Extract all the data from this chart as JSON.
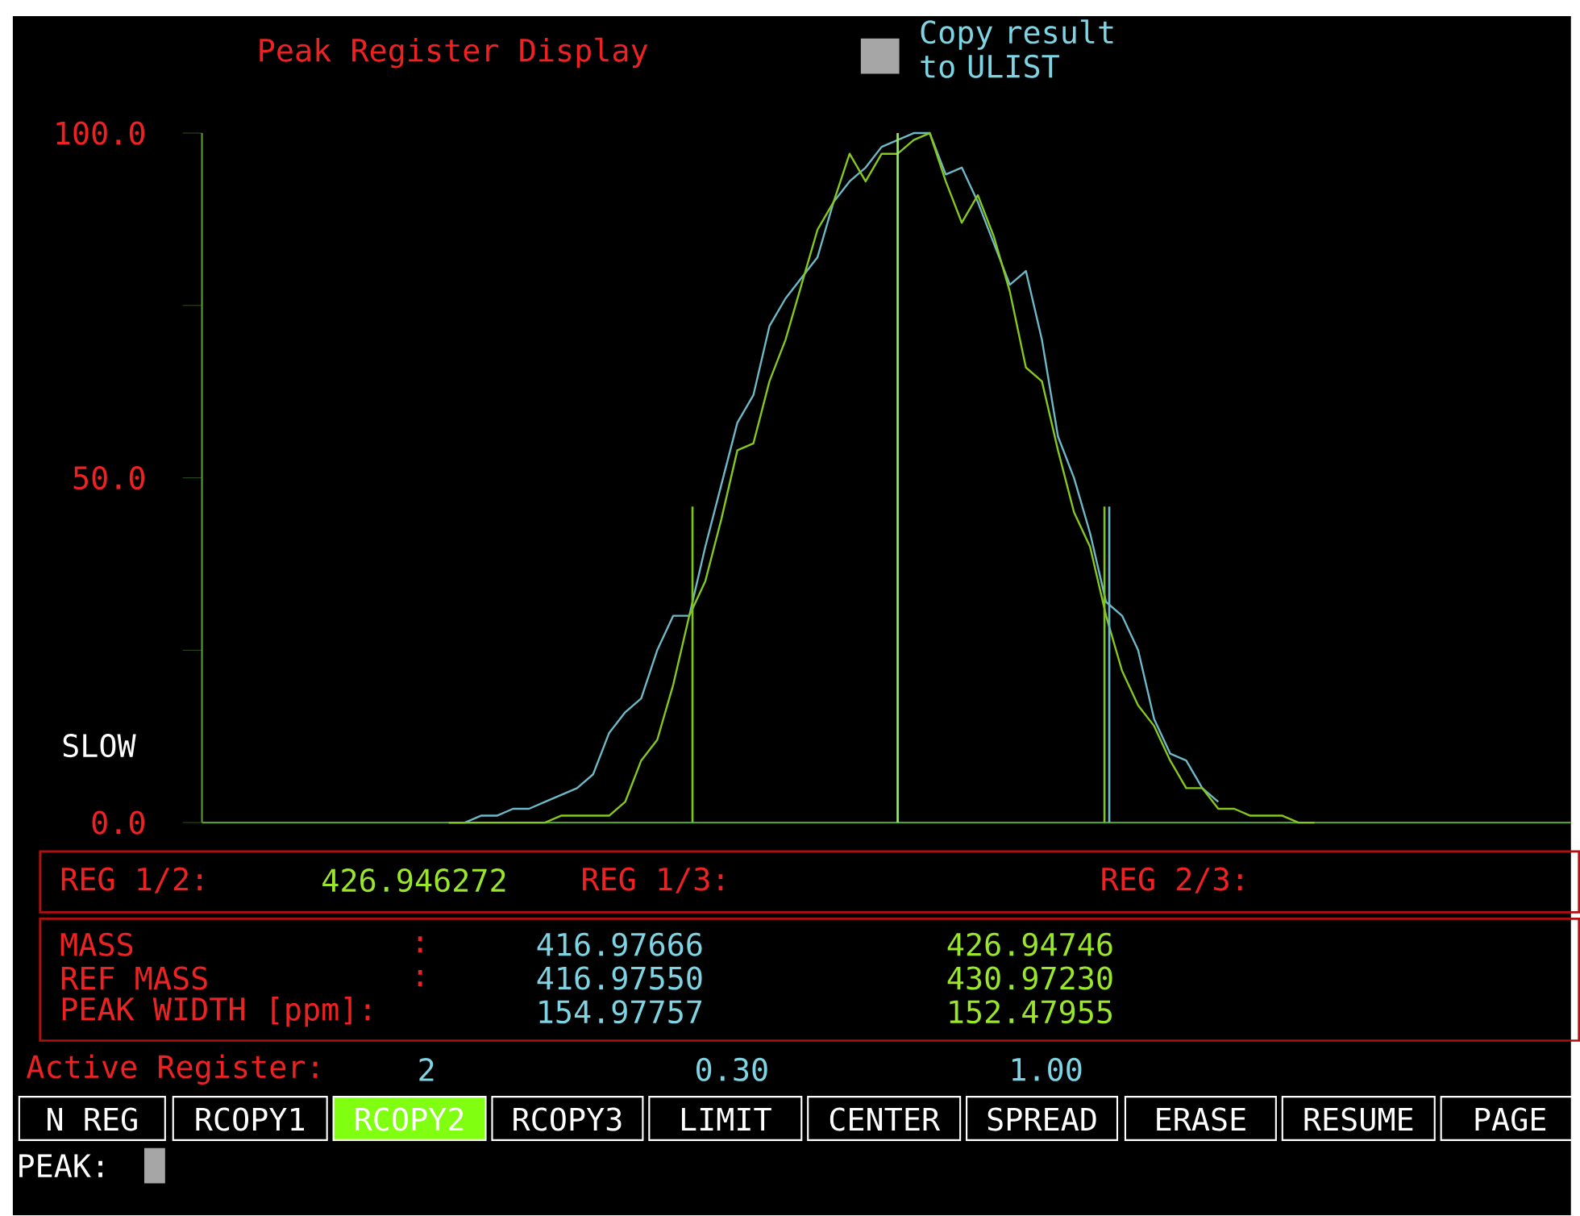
{
  "chart_data": {
    "type": "line",
    "title": "Peak Register Display",
    "categories": [
      null,
      null,
      null,
      null,
      null,
      null,
      null,
      null,
      null,
      null,
      null,
      null,
      null,
      null,
      null,
      null,
      null,
      null,
      null,
      null,
      null,
      null,
      null,
      null,
      null,
      null,
      null,
      null,
      null,
      null,
      null,
      null,
      null,
      null,
      null,
      null,
      null,
      null,
      null,
      null,
      null,
      null,
      null,
      null,
      null,
      null,
      null,
      null,
      null,
      null,
      null,
      null,
      null,
      null,
      null,
      null,
      null,
      null,
      null,
      null,
      null,
      null,
      null,
      null,
      null,
      null,
      null,
      null,
      null,
      null,
      null,
      null,
      null,
      null,
      null,
      null,
      null,
      null,
      null,
      null,
      null,
      null,
      null,
      null,
      null,
      null
    ],
    "series": [
      {
        "color": "#6fb8c8",
        "values": [
          null,
          null,
          null,
          null,
          null,
          null,
          null,
          null,
          null,
          null,
          null,
          null,
          null,
          null,
          null,
          0,
          0,
          1,
          1,
          2,
          2,
          3,
          4,
          5,
          7,
          13,
          16,
          18,
          25,
          30,
          30,
          40,
          49,
          58,
          62,
          72,
          76,
          79,
          82,
          90,
          93,
          95,
          98,
          99,
          100,
          100,
          94,
          95,
          90,
          84,
          78,
          80,
          70,
          56,
          50,
          42,
          32,
          30,
          25,
          15,
          10,
          9,
          5,
          3,
          null,
          null,
          null,
          null,
          null,
          null,
          null,
          null,
          null,
          null,
          null,
          null,
          null,
          null,
          null,
          null,
          null,
          null,
          null,
          null,
          null,
          null
        ]
      },
      {
        "color": "#86c81e",
        "values": [
          null,
          null,
          null,
          null,
          null,
          null,
          null,
          null,
          null,
          null,
          null,
          null,
          null,
          null,
          null,
          0,
          0,
          0,
          0,
          0,
          0,
          0,
          1,
          1,
          1,
          1,
          3,
          9,
          12,
          20,
          30,
          35,
          44,
          54,
          55,
          64,
          70,
          78,
          86,
          90,
          97,
          93,
          97,
          97,
          99,
          100,
          93,
          87,
          91,
          85,
          77,
          66,
          64,
          54,
          45,
          40,
          30,
          22,
          17,
          14,
          9,
          5,
          5,
          2,
          2,
          1,
          1,
          1,
          0,
          0,
          null,
          null,
          null,
          null,
          null,
          null,
          null,
          null,
          null,
          null,
          null,
          null,
          null,
          null,
          null,
          null
        ]
      }
    ],
    "ylim": [
      0,
      100
    ],
    "yticks": [
      {
        "value": 0,
        "label": "0.0"
      },
      {
        "value": 25,
        "label": null
      },
      {
        "value": 50,
        "label": "50.0"
      },
      {
        "value": 75,
        "label": null
      },
      {
        "value": 100,
        "label": "100.0"
      }
    ],
    "annotations": [
      "Copy result to ULIST",
      "SLOW",
      "REG 1/2:",
      "426.946272",
      "REG 1/3:",
      "REG 2/3:",
      "MASS",
      ":",
      "416.97666",
      "426.94746",
      "REF MASS",
      ":",
      "416.97550",
      "430.97230",
      "PEAK WIDTH [ppm]:",
      "154.97757",
      "152.47955",
      "Active Register:",
      "2",
      "0.30",
      "1.00",
      "N REG",
      "RCOPY1",
      "RCOPY2",
      "RCOPY3",
      "LIMIT",
      "CENTER",
      "SPREAD",
      "ERASE",
      "RESUME",
      "PAGE",
      "PEAK:"
    ]
  }
}
